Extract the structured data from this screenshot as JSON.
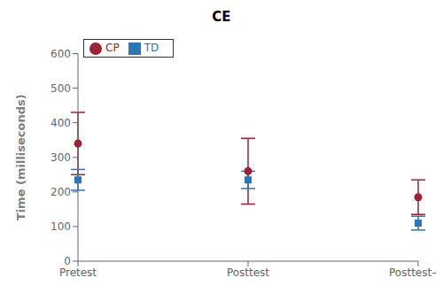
{
  "chart_data": {
    "type": "scatter",
    "title": "CE",
    "ylabel": "Time (milliseconds)",
    "categories": [
      "Pretest",
      "Posttest",
      "Posttest–VI"
    ],
    "series": [
      {
        "name": "CP",
        "color": "#9B2335",
        "values": [
          340,
          260,
          185
        ],
        "errors": [
          90,
          95,
          50
        ],
        "marker": "circle"
      },
      {
        "name": "TD",
        "color": "#2E75B6",
        "values": [
          235,
          235,
          110
        ],
        "errors": [
          30,
          25,
          20
        ],
        "marker": "square"
      }
    ],
    "ylim": [
      0,
      600
    ],
    "yticks": [
      0,
      100,
      200,
      300,
      400,
      500,
      600
    ],
    "grid": false,
    "legend": "upper left"
  }
}
